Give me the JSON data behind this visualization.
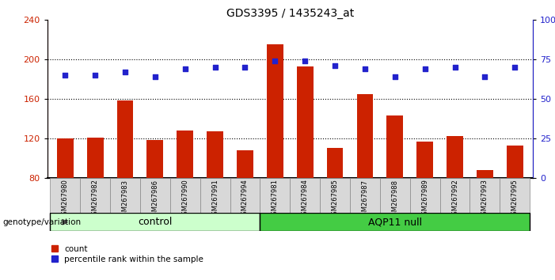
{
  "title": "GDS3395 / 1435243_at",
  "samples": [
    "GSM267980",
    "GSM267982",
    "GSM267983",
    "GSM267986",
    "GSM267990",
    "GSM267991",
    "GSM267994",
    "GSM267981",
    "GSM267984",
    "GSM267985",
    "GSM267987",
    "GSM267988",
    "GSM267989",
    "GSM267992",
    "GSM267993",
    "GSM267995"
  ],
  "counts": [
    120,
    121,
    158,
    118,
    128,
    127,
    108,
    215,
    193,
    110,
    165,
    143,
    117,
    122,
    88,
    113
  ],
  "percentile_ranks": [
    65,
    65,
    67,
    64,
    69,
    70,
    70,
    74,
    74,
    71,
    69,
    64,
    69,
    70,
    64,
    70
  ],
  "control_count": 7,
  "group_labels": [
    "control",
    "AQP11 null"
  ],
  "ylim_left": [
    80,
    240
  ],
  "ylim_right": [
    0,
    100
  ],
  "yticks_left": [
    80,
    120,
    160,
    200,
    240
  ],
  "yticks_right": [
    0,
    25,
    50,
    75,
    100
  ],
  "bar_color": "#cc2200",
  "dot_color": "#2222cc",
  "control_bg": "#ccffcc",
  "aqp_bg": "#44cc44",
  "background_color": "#ffffff",
  "sample_bg": "#d8d8d8",
  "grid_color": "#000000"
}
